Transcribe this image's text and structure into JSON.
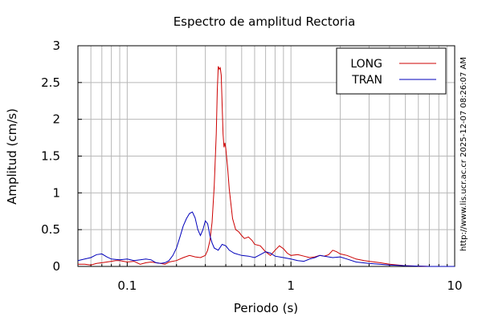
{
  "chart_data": {
    "type": "line",
    "title": "Espectro de amplitud Rectoria",
    "xlabel": "Periodo (s)",
    "ylabel": "Amplitud (cm/s)",
    "xscale": "log",
    "xlim": [
      0.05,
      10
    ],
    "ylim": [
      0,
      3
    ],
    "grid": true,
    "legend_position": "top-right",
    "xticks": [
      {
        "value": 0.1,
        "label": "0.1"
      },
      {
        "value": 1,
        "label": "1"
      },
      {
        "value": 10,
        "label": "10"
      }
    ],
    "yticks": [
      {
        "value": 0,
        "label": "0"
      },
      {
        "value": 0.5,
        "label": "0.5"
      },
      {
        "value": 1,
        "label": "1"
      },
      {
        "value": 1.5,
        "label": "1.5"
      },
      {
        "value": 2,
        "label": "2"
      },
      {
        "value": 2.5,
        "label": "2.5"
      },
      {
        "value": 3,
        "label": "3"
      }
    ],
    "series": [
      {
        "name": "LONG",
        "color": "#cc0000",
        "points": [
          [
            0.05,
            0.03
          ],
          [
            0.055,
            0.03
          ],
          [
            0.06,
            0.02
          ],
          [
            0.065,
            0.04
          ],
          [
            0.07,
            0.05
          ],
          [
            0.075,
            0.06
          ],
          [
            0.08,
            0.07
          ],
          [
            0.085,
            0.08
          ],
          [
            0.09,
            0.08
          ],
          [
            0.1,
            0.06
          ],
          [
            0.11,
            0.07
          ],
          [
            0.12,
            0.03
          ],
          [
            0.13,
            0.05
          ],
          [
            0.14,
            0.06
          ],
          [
            0.15,
            0.05
          ],
          [
            0.16,
            0.04
          ],
          [
            0.17,
            0.03
          ],
          [
            0.18,
            0.06
          ],
          [
            0.2,
            0.08
          ],
          [
            0.22,
            0.12
          ],
          [
            0.24,
            0.15
          ],
          [
            0.26,
            0.13
          ],
          [
            0.28,
            0.12
          ],
          [
            0.3,
            0.15
          ],
          [
            0.31,
            0.22
          ],
          [
            0.32,
            0.35
          ],
          [
            0.33,
            0.6
          ],
          [
            0.34,
            1.1
          ],
          [
            0.35,
            1.8
          ],
          [
            0.355,
            2.4
          ],
          [
            0.36,
            2.72
          ],
          [
            0.365,
            2.68
          ],
          [
            0.37,
            2.7
          ],
          [
            0.375,
            2.6
          ],
          [
            0.38,
            2.2
          ],
          [
            0.385,
            1.8
          ],
          [
            0.39,
            1.62
          ],
          [
            0.395,
            1.68
          ],
          [
            0.4,
            1.6
          ],
          [
            0.41,
            1.35
          ],
          [
            0.42,
            1.05
          ],
          [
            0.44,
            0.65
          ],
          [
            0.46,
            0.5
          ],
          [
            0.48,
            0.47
          ],
          [
            0.5,
            0.42
          ],
          [
            0.52,
            0.38
          ],
          [
            0.55,
            0.4
          ],
          [
            0.58,
            0.35
          ],
          [
            0.6,
            0.3
          ],
          [
            0.65,
            0.28
          ],
          [
            0.7,
            0.2
          ],
          [
            0.75,
            0.15
          ],
          [
            0.8,
            0.22
          ],
          [
            0.85,
            0.28
          ],
          [
            0.9,
            0.24
          ],
          [
            0.95,
            0.18
          ],
          [
            1.0,
            0.15
          ],
          [
            1.1,
            0.16
          ],
          [
            1.2,
            0.14
          ],
          [
            1.3,
            0.12
          ],
          [
            1.4,
            0.13
          ],
          [
            1.5,
            0.15
          ],
          [
            1.6,
            0.14
          ],
          [
            1.7,
            0.16
          ],
          [
            1.8,
            0.22
          ],
          [
            1.9,
            0.2
          ],
          [
            2.0,
            0.17
          ],
          [
            2.2,
            0.15
          ],
          [
            2.5,
            0.1
          ],
          [
            2.8,
            0.08
          ],
          [
            3.0,
            0.07
          ],
          [
            3.5,
            0.05
          ],
          [
            4.0,
            0.03
          ],
          [
            5.0,
            0.01
          ],
          [
            7.0,
            0.0
          ],
          [
            10.0,
            0.0
          ]
        ]
      },
      {
        "name": "TRAN",
        "color": "#0000bb",
        "points": [
          [
            0.05,
            0.08
          ],
          [
            0.055,
            0.1
          ],
          [
            0.06,
            0.12
          ],
          [
            0.065,
            0.16
          ],
          [
            0.07,
            0.17
          ],
          [
            0.075,
            0.13
          ],
          [
            0.08,
            0.1
          ],
          [
            0.09,
            0.09
          ],
          [
            0.1,
            0.1
          ],
          [
            0.11,
            0.08
          ],
          [
            0.12,
            0.09
          ],
          [
            0.13,
            0.1
          ],
          [
            0.14,
            0.09
          ],
          [
            0.15,
            0.05
          ],
          [
            0.16,
            0.04
          ],
          [
            0.17,
            0.05
          ],
          [
            0.18,
            0.08
          ],
          [
            0.19,
            0.15
          ],
          [
            0.2,
            0.25
          ],
          [
            0.21,
            0.4
          ],
          [
            0.22,
            0.55
          ],
          [
            0.23,
            0.65
          ],
          [
            0.24,
            0.72
          ],
          [
            0.25,
            0.74
          ],
          [
            0.26,
            0.66
          ],
          [
            0.27,
            0.5
          ],
          [
            0.28,
            0.42
          ],
          [
            0.29,
            0.5
          ],
          [
            0.3,
            0.62
          ],
          [
            0.31,
            0.58
          ],
          [
            0.32,
            0.42
          ],
          [
            0.33,
            0.32
          ],
          [
            0.34,
            0.25
          ],
          [
            0.36,
            0.22
          ],
          [
            0.38,
            0.3
          ],
          [
            0.4,
            0.28
          ],
          [
            0.42,
            0.22
          ],
          [
            0.45,
            0.18
          ],
          [
            0.5,
            0.15
          ],
          [
            0.55,
            0.14
          ],
          [
            0.6,
            0.12
          ],
          [
            0.65,
            0.16
          ],
          [
            0.7,
            0.2
          ],
          [
            0.75,
            0.18
          ],
          [
            0.8,
            0.14
          ],
          [
            0.9,
            0.12
          ],
          [
            1.0,
            0.1
          ],
          [
            1.1,
            0.08
          ],
          [
            1.2,
            0.07
          ],
          [
            1.3,
            0.1
          ],
          [
            1.4,
            0.12
          ],
          [
            1.5,
            0.15
          ],
          [
            1.6,
            0.14
          ],
          [
            1.8,
            0.12
          ],
          [
            2.0,
            0.13
          ],
          [
            2.2,
            0.1
          ],
          [
            2.5,
            0.06
          ],
          [
            3.0,
            0.04
          ],
          [
            4.0,
            0.02
          ],
          [
            5.0,
            0.01
          ],
          [
            7.0,
            0.0
          ],
          [
            10.0,
            0.0
          ]
        ]
      }
    ]
  },
  "side_label": "http://www.lis.ucr.ac.cr  2025-12-07 08:26:07 AM"
}
